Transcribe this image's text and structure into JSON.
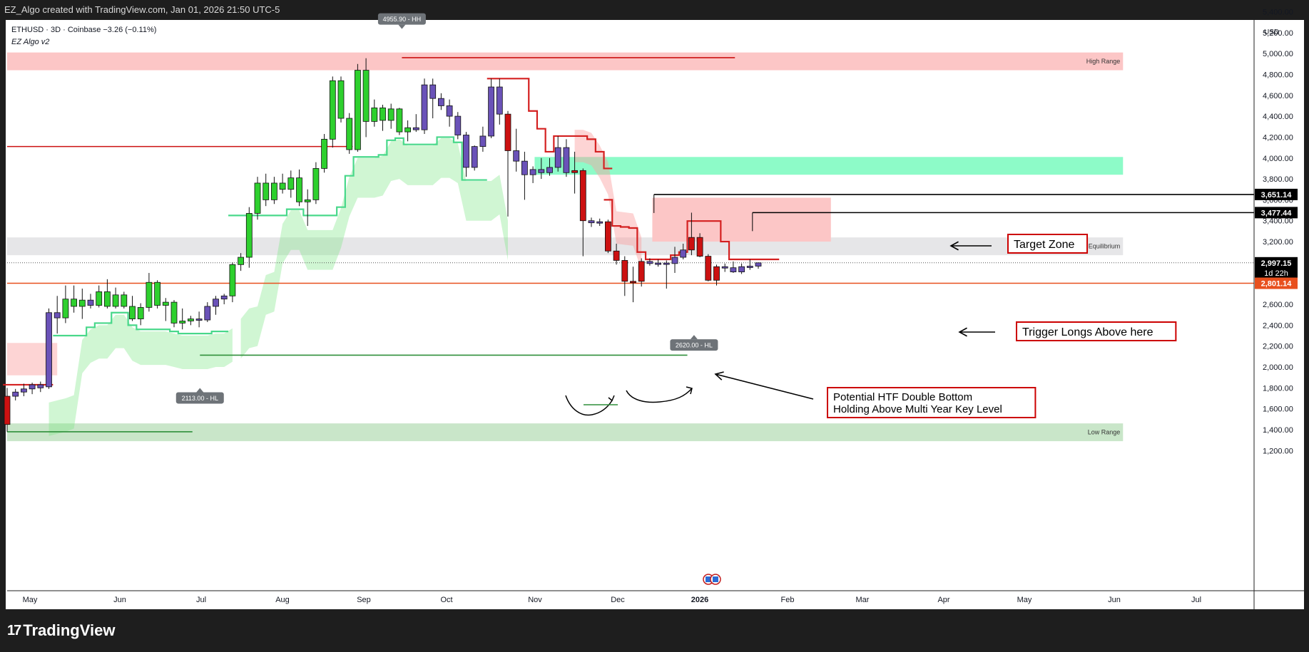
{
  "header": {
    "caption": "EZ_Algo created with TradingView.com, Jan 01, 2026 21:50 UTC-5"
  },
  "footer": {
    "brand": "TradingView"
  },
  "legend": {
    "symbol_line": "ETHUSD · 3D · Coinbase  −3.26 (−0.11%)",
    "indicator": "EZ Algo v2"
  },
  "colors": {
    "bull": "#2ed02e",
    "bull_dark": "#2f8f3a",
    "bear": "#cc1111",
    "neutral": "#6a52b8",
    "zone_red": "#fcc6c6",
    "zone_green": "#8dfbc8",
    "zone_gray": "#e6e6e8",
    "zone_lowrange": "#c9e6c9",
    "key_level": "#e8501e"
  },
  "chart_data": {
    "type": "candlestick",
    "symbol": "ETHUSD",
    "timeframe": "3D",
    "exchange": "Coinbase",
    "ylim": [
      1100,
      5700
    ],
    "currency": "USD",
    "y_ticks": [
      1200,
      1400,
      1600,
      1800,
      2000,
      2200,
      2400,
      2600,
      2800,
      3000,
      3200,
      3400,
      3600,
      3800,
      4000,
      4200,
      4400,
      4600,
      4800,
      5000,
      5200,
      5400
    ],
    "x_labels": [
      "May",
      "Jun",
      "Jul",
      "Aug",
      "Sep",
      "Oct",
      "Nov",
      "Dec",
      "2026",
      "Feb",
      "Mar",
      "Apr",
      "May",
      "Jun",
      "Jul"
    ],
    "candles": [
      {
        "o": 1450,
        "h": 1800,
        "l": 1380,
        "c": 1720,
        "t": "bear"
      },
      {
        "o": 1720,
        "h": 1790,
        "l": 1680,
        "c": 1760,
        "t": "neu"
      },
      {
        "o": 1760,
        "h": 1840,
        "l": 1720,
        "c": 1790,
        "t": "neu"
      },
      {
        "o": 1790,
        "h": 1850,
        "l": 1740,
        "c": 1830,
        "t": "neu"
      },
      {
        "o": 1830,
        "h": 1860,
        "l": 1760,
        "c": 1800,
        "t": "neu"
      },
      {
        "o": 1810,
        "h": 2560,
        "l": 1790,
        "c": 2520,
        "t": "neu"
      },
      {
        "o": 2520,
        "h": 2680,
        "l": 2320,
        "c": 2470,
        "t": "neu"
      },
      {
        "o": 2470,
        "h": 2780,
        "l": 2420,
        "c": 2650,
        "t": "bull"
      },
      {
        "o": 2650,
        "h": 2780,
        "l": 2520,
        "c": 2580,
        "t": "bull"
      },
      {
        "o": 2580,
        "h": 2750,
        "l": 2460,
        "c": 2640,
        "t": "bull"
      },
      {
        "o": 2640,
        "h": 2700,
        "l": 2560,
        "c": 2590,
        "t": "neu"
      },
      {
        "o": 2590,
        "h": 2780,
        "l": 2570,
        "c": 2720,
        "t": "bull"
      },
      {
        "o": 2720,
        "h": 2840,
        "l": 2560,
        "c": 2580,
        "t": "bull"
      },
      {
        "o": 2580,
        "h": 2760,
        "l": 2560,
        "c": 2690,
        "t": "bull"
      },
      {
        "o": 2690,
        "h": 2720,
        "l": 2560,
        "c": 2580,
        "t": "bull"
      },
      {
        "o": 2580,
        "h": 2680,
        "l": 2440,
        "c": 2460,
        "t": "bull"
      },
      {
        "o": 2460,
        "h": 2610,
        "l": 2400,
        "c": 2570,
        "t": "bull"
      },
      {
        "o": 2570,
        "h": 2900,
        "l": 2530,
        "c": 2810,
        "t": "bull"
      },
      {
        "o": 2810,
        "h": 2830,
        "l": 2560,
        "c": 2590,
        "t": "bull"
      },
      {
        "o": 2590,
        "h": 2660,
        "l": 2440,
        "c": 2620,
        "t": "bull"
      },
      {
        "o": 2620,
        "h": 2640,
        "l": 2380,
        "c": 2420,
        "t": "bull"
      },
      {
        "o": 2420,
        "h": 2560,
        "l": 2360,
        "c": 2440,
        "t": "bull"
      },
      {
        "o": 2440,
        "h": 2490,
        "l": 2400,
        "c": 2460,
        "t": "bull"
      },
      {
        "o": 2460,
        "h": 2530,
        "l": 2380,
        "c": 2450,
        "t": "neu"
      },
      {
        "o": 2450,
        "h": 2620,
        "l": 2430,
        "c": 2580,
        "t": "neu"
      },
      {
        "o": 2580,
        "h": 2680,
        "l": 2500,
        "c": 2650,
        "t": "neu"
      },
      {
        "o": 2650,
        "h": 2700,
        "l": 2600,
        "c": 2680,
        "t": "neu"
      },
      {
        "o": 2680,
        "h": 3000,
        "l": 2620,
        "c": 2980,
        "t": "bull"
      },
      {
        "o": 2980,
        "h": 3090,
        "l": 2920,
        "c": 3050,
        "t": "bull"
      },
      {
        "o": 3050,
        "h": 3530,
        "l": 2950,
        "c": 3470,
        "t": "bull"
      },
      {
        "o": 3470,
        "h": 3820,
        "l": 3410,
        "c": 3760,
        "t": "bull"
      },
      {
        "o": 3760,
        "h": 3850,
        "l": 3540,
        "c": 3600,
        "t": "bull"
      },
      {
        "o": 3600,
        "h": 3820,
        "l": 3560,
        "c": 3760,
        "t": "bull"
      },
      {
        "o": 3760,
        "h": 3850,
        "l": 3660,
        "c": 3700,
        "t": "bull"
      },
      {
        "o": 3700,
        "h": 3880,
        "l": 3620,
        "c": 3810,
        "t": "bull"
      },
      {
        "o": 3810,
        "h": 3890,
        "l": 3540,
        "c": 3580,
        "t": "bull"
      },
      {
        "o": 3580,
        "h": 3700,
        "l": 3350,
        "c": 3600,
        "t": "bull"
      },
      {
        "o": 3600,
        "h": 3960,
        "l": 3560,
        "c": 3900,
        "t": "bull"
      },
      {
        "o": 3900,
        "h": 4230,
        "l": 3860,
        "c": 4180,
        "t": "bull"
      },
      {
        "o": 4180,
        "h": 4780,
        "l": 4100,
        "c": 4740,
        "t": "bull"
      },
      {
        "o": 4740,
        "h": 4780,
        "l": 4340,
        "c": 4380,
        "t": "bull"
      },
      {
        "o": 4380,
        "h": 4430,
        "l": 4040,
        "c": 4080,
        "t": "bull"
      },
      {
        "o": 4080,
        "h": 4900,
        "l": 4060,
        "c": 4840,
        "t": "bull"
      },
      {
        "o": 4840,
        "h": 4955,
        "l": 4200,
        "c": 4350,
        "t": "bull"
      },
      {
        "o": 4350,
        "h": 4560,
        "l": 4300,
        "c": 4480,
        "t": "bull"
      },
      {
        "o": 4480,
        "h": 4510,
        "l": 4260,
        "c": 4360,
        "t": "bull"
      },
      {
        "o": 4360,
        "h": 4520,
        "l": 4280,
        "c": 4470,
        "t": "bull"
      },
      {
        "o": 4470,
        "h": 4480,
        "l": 4220,
        "c": 4250,
        "t": "bull"
      },
      {
        "o": 4250,
        "h": 4360,
        "l": 4160,
        "c": 4290,
        "t": "bull"
      },
      {
        "o": 4290,
        "h": 4420,
        "l": 4250,
        "c": 4270,
        "t": "neu"
      },
      {
        "o": 4270,
        "h": 4760,
        "l": 4230,
        "c": 4700,
        "t": "neu"
      },
      {
        "o": 4700,
        "h": 4760,
        "l": 4380,
        "c": 4570,
        "t": "neu"
      },
      {
        "o": 4570,
        "h": 4620,
        "l": 4460,
        "c": 4500,
        "t": "neu"
      },
      {
        "o": 4500,
        "h": 4560,
        "l": 4300,
        "c": 4400,
        "t": "neu"
      },
      {
        "o": 4400,
        "h": 4440,
        "l": 4180,
        "c": 4220,
        "t": "neu"
      },
      {
        "o": 4220,
        "h": 4250,
        "l": 3820,
        "c": 3910,
        "t": "neu"
      },
      {
        "o": 3910,
        "h": 4120,
        "l": 3880,
        "c": 4110,
        "t": "neu"
      },
      {
        "o": 4110,
        "h": 4300,
        "l": 4060,
        "c": 4210,
        "t": "neu"
      },
      {
        "o": 4210,
        "h": 4760,
        "l": 4190,
        "c": 4680,
        "t": "neu"
      },
      {
        "o": 4680,
        "h": 4760,
        "l": 4320,
        "c": 4420,
        "t": "neu"
      },
      {
        "o": 4420,
        "h": 4450,
        "l": 3440,
        "c": 4070,
        "t": "bear"
      },
      {
        "o": 4070,
        "h": 4280,
        "l": 3870,
        "c": 3970,
        "t": "neu"
      },
      {
        "o": 3970,
        "h": 4060,
        "l": 3600,
        "c": 3840,
        "t": "neu"
      },
      {
        "o": 3840,
        "h": 3920,
        "l": 3760,
        "c": 3890,
        "t": "neu"
      },
      {
        "o": 3890,
        "h": 4000,
        "l": 3800,
        "c": 3860,
        "t": "neu"
      },
      {
        "o": 3860,
        "h": 4000,
        "l": 3830,
        "c": 3910,
        "t": "neu"
      },
      {
        "o": 3910,
        "h": 4210,
        "l": 3870,
        "c": 4100,
        "t": "neu"
      },
      {
        "o": 4100,
        "h": 4180,
        "l": 3820,
        "c": 3860,
        "t": "neu"
      },
      {
        "o": 3860,
        "h": 4060,
        "l": 3660,
        "c": 3880,
        "t": "bear"
      },
      {
        "o": 3880,
        "h": 3900,
        "l": 3060,
        "c": 3400,
        "t": "bear"
      },
      {
        "o": 3400,
        "h": 3430,
        "l": 3340,
        "c": 3380,
        "t": "neu"
      },
      {
        "o": 3380,
        "h": 3420,
        "l": 3350,
        "c": 3390,
        "t": "neu"
      },
      {
        "o": 3390,
        "h": 3410,
        "l": 3090,
        "c": 3110,
        "t": "bear"
      },
      {
        "o": 3110,
        "h": 3180,
        "l": 2980,
        "c": 3020,
        "t": "bear"
      },
      {
        "o": 3020,
        "h": 3060,
        "l": 2680,
        "c": 2820,
        "t": "bear"
      },
      {
        "o": 2820,
        "h": 2960,
        "l": 2620,
        "c": 2820,
        "t": "bear"
      },
      {
        "o": 2820,
        "h": 3040,
        "l": 2770,
        "c": 3010,
        "t": "bear"
      },
      {
        "o": 3010,
        "h": 3040,
        "l": 2970,
        "c": 2990,
        "t": "neu"
      },
      {
        "o": 2990,
        "h": 3030,
        "l": 2960,
        "c": 2995,
        "t": "neu"
      },
      {
        "o": 2995,
        "h": 3020,
        "l": 2750,
        "c": 2990,
        "t": "neu"
      },
      {
        "o": 2990,
        "h": 3150,
        "l": 2900,
        "c": 3050,
        "t": "neu"
      },
      {
        "o": 3050,
        "h": 3180,
        "l": 3030,
        "c": 3120,
        "t": "neu"
      },
      {
        "o": 3120,
        "h": 3477,
        "l": 3070,
        "c": 3240,
        "t": "bear"
      },
      {
        "o": 3240,
        "h": 3280,
        "l": 3050,
        "c": 3060,
        "t": "bear"
      },
      {
        "o": 3060,
        "h": 3080,
        "l": 2820,
        "c": 2830,
        "t": "bear"
      },
      {
        "o": 2830,
        "h": 2980,
        "l": 2780,
        "c": 2960,
        "t": "bear"
      },
      {
        "o": 2960,
        "h": 2990,
        "l": 2910,
        "c": 2950,
        "t": "neu"
      },
      {
        "o": 2950,
        "h": 3010,
        "l": 2900,
        "c": 2910,
        "t": "neu"
      },
      {
        "o": 2910,
        "h": 2990,
        "l": 2890,
        "c": 2960,
        "t": "neu"
      },
      {
        "o": 2960,
        "h": 3030,
        "l": 2930,
        "c": 2965,
        "t": "neu"
      },
      {
        "o": 2965,
        "h": 3000,
        "l": 2940,
        "c": 2997,
        "t": "neu"
      }
    ],
    "zones": [
      {
        "name": "high-range",
        "label": "High Range",
        "top": 5010,
        "bottom": 4840,
        "x0": 0,
        "x1": 133.7,
        "color": "#fcc6c6"
      },
      {
        "name": "target-zone",
        "label": "",
        "top": 4010,
        "bottom": 3840,
        "x0": 63.2,
        "x1": 133.7,
        "color": "#8dfbc8"
      },
      {
        "name": "equilibrium",
        "label": "Equilibrium",
        "top": 3240,
        "bottom": 3070,
        "x0": 0,
        "x1": 133.7,
        "color": "#e6e6e8"
      },
      {
        "name": "low-range",
        "label": "Low Range",
        "top": 1460,
        "bottom": 1290,
        "x0": 0,
        "x1": 133.7,
        "color": "#c9e6c9"
      },
      {
        "name": "supply-zone",
        "label": "",
        "top": 3620,
        "bottom": 3200,
        "x0": 77.3,
        "x1": 98.7,
        "color": "#fcc6c6"
      }
    ],
    "levels": [
      {
        "name": "peak-line",
        "price": 4960,
        "x0": 47.3,
        "x1": 87.2,
        "color": "#cc1111"
      },
      {
        "name": "red-resistance-line",
        "price": 4110,
        "x0": 0,
        "x1": 41.4,
        "color": "#cc1111"
      },
      {
        "name": "hl-2113-line",
        "price": 2113,
        "x0": 23.1,
        "x1": 81.5,
        "color": "#2f8f3a"
      },
      {
        "name": "low-green-line",
        "price": 1380,
        "x0": 0,
        "x1": 22.2,
        "color": "#2f8f3a"
      },
      {
        "name": "level-3651",
        "price": 3651.14,
        "x0": 77.5,
        "x1": 177,
        "color": "#000000"
      },
      {
        "name": "level-3477",
        "price": 3477.44,
        "x0": 89.3,
        "x1": 177,
        "color": "#000000"
      },
      {
        "name": "key-level-2801",
        "price": 2801.14,
        "x0": 0,
        "x1": 177,
        "color": "#e8501e"
      }
    ],
    "price_tags": [
      {
        "price": 3651.14,
        "label": "3,651.14",
        "bg": "#000000",
        "fg": "#ffffff"
      },
      {
        "price": 3477.44,
        "label": "3,477.44",
        "bg": "#000000",
        "fg": "#ffffff"
      },
      {
        "price": 2997.15,
        "label": "2,997.15",
        "sub": "1d 22h",
        "bg": "#000000",
        "fg": "#ffffff"
      },
      {
        "price": 2801.14,
        "label": "2,801.14",
        "bg": "#e8501e",
        "fg": "#ffffff"
      }
    ],
    "pivots": [
      {
        "label": "4955.90 - HH",
        "price": 4955.9,
        "x": 47.3,
        "pos": "above"
      },
      {
        "label": "2620.00 - HL",
        "price": 2620,
        "x": 82.3,
        "pos": "below"
      },
      {
        "label": "2113.00 - HL",
        "price": 2113,
        "x": 23.1,
        "pos": "below"
      }
    ],
    "annotations": [
      {
        "name": "target-zone-label",
        "text": "Target Zone"
      },
      {
        "name": "trigger-longs-label",
        "text": "Trigger Longs Above here"
      },
      {
        "name": "double-bottom-label",
        "lines": [
          "Potential HTF Double Bottom",
          "Holding Above Multi Year Key Level"
        ]
      }
    ]
  }
}
